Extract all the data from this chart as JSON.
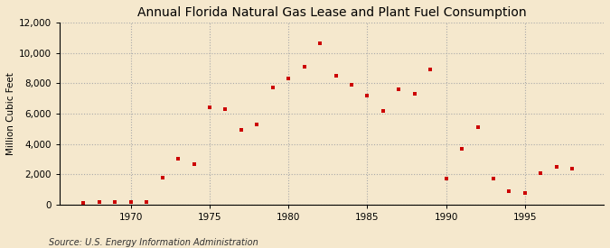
{
  "title": "Annual Florida Natural Gas Lease and Plant Fuel Consumption",
  "ylabel": "Million Cubic Feet",
  "source": "Source: U.S. Energy Information Administration",
  "background_color": "#f5e8cd",
  "plot_background_color": "#f5e8cd",
  "marker_color": "#cc0000",
  "marker": "s",
  "marker_size": 3.5,
  "xlim": [
    1965.5,
    2000
  ],
  "ylim": [
    0,
    12000
  ],
  "yticks": [
    0,
    2000,
    4000,
    6000,
    8000,
    10000,
    12000
  ],
  "xticks": [
    1970,
    1975,
    1980,
    1985,
    1990,
    1995
  ],
  "years": [
    1967,
    1968,
    1969,
    1970,
    1971,
    1972,
    1973,
    1974,
    1975,
    1976,
    1977,
    1978,
    1979,
    1980,
    1981,
    1982,
    1983,
    1984,
    1985,
    1986,
    1987,
    1988,
    1989,
    1990,
    1991,
    1992,
    1993,
    1994,
    1995,
    1996,
    1997,
    1998
  ],
  "values": [
    100,
    200,
    200,
    200,
    200,
    1800,
    3000,
    2700,
    6400,
    6300,
    4900,
    5300,
    7700,
    8300,
    9100,
    10600,
    8500,
    7900,
    7200,
    6200,
    7600,
    7300,
    8900,
    1700,
    3700,
    5100,
    1700,
    900,
    800,
    2100,
    2500,
    2400
  ],
  "grid_color": "#aaaaaa",
  "grid_linestyle": ":",
  "grid_alpha": 1.0,
  "title_fontsize": 10,
  "ylabel_fontsize": 7.5,
  "tick_fontsize": 7.5,
  "source_fontsize": 7
}
